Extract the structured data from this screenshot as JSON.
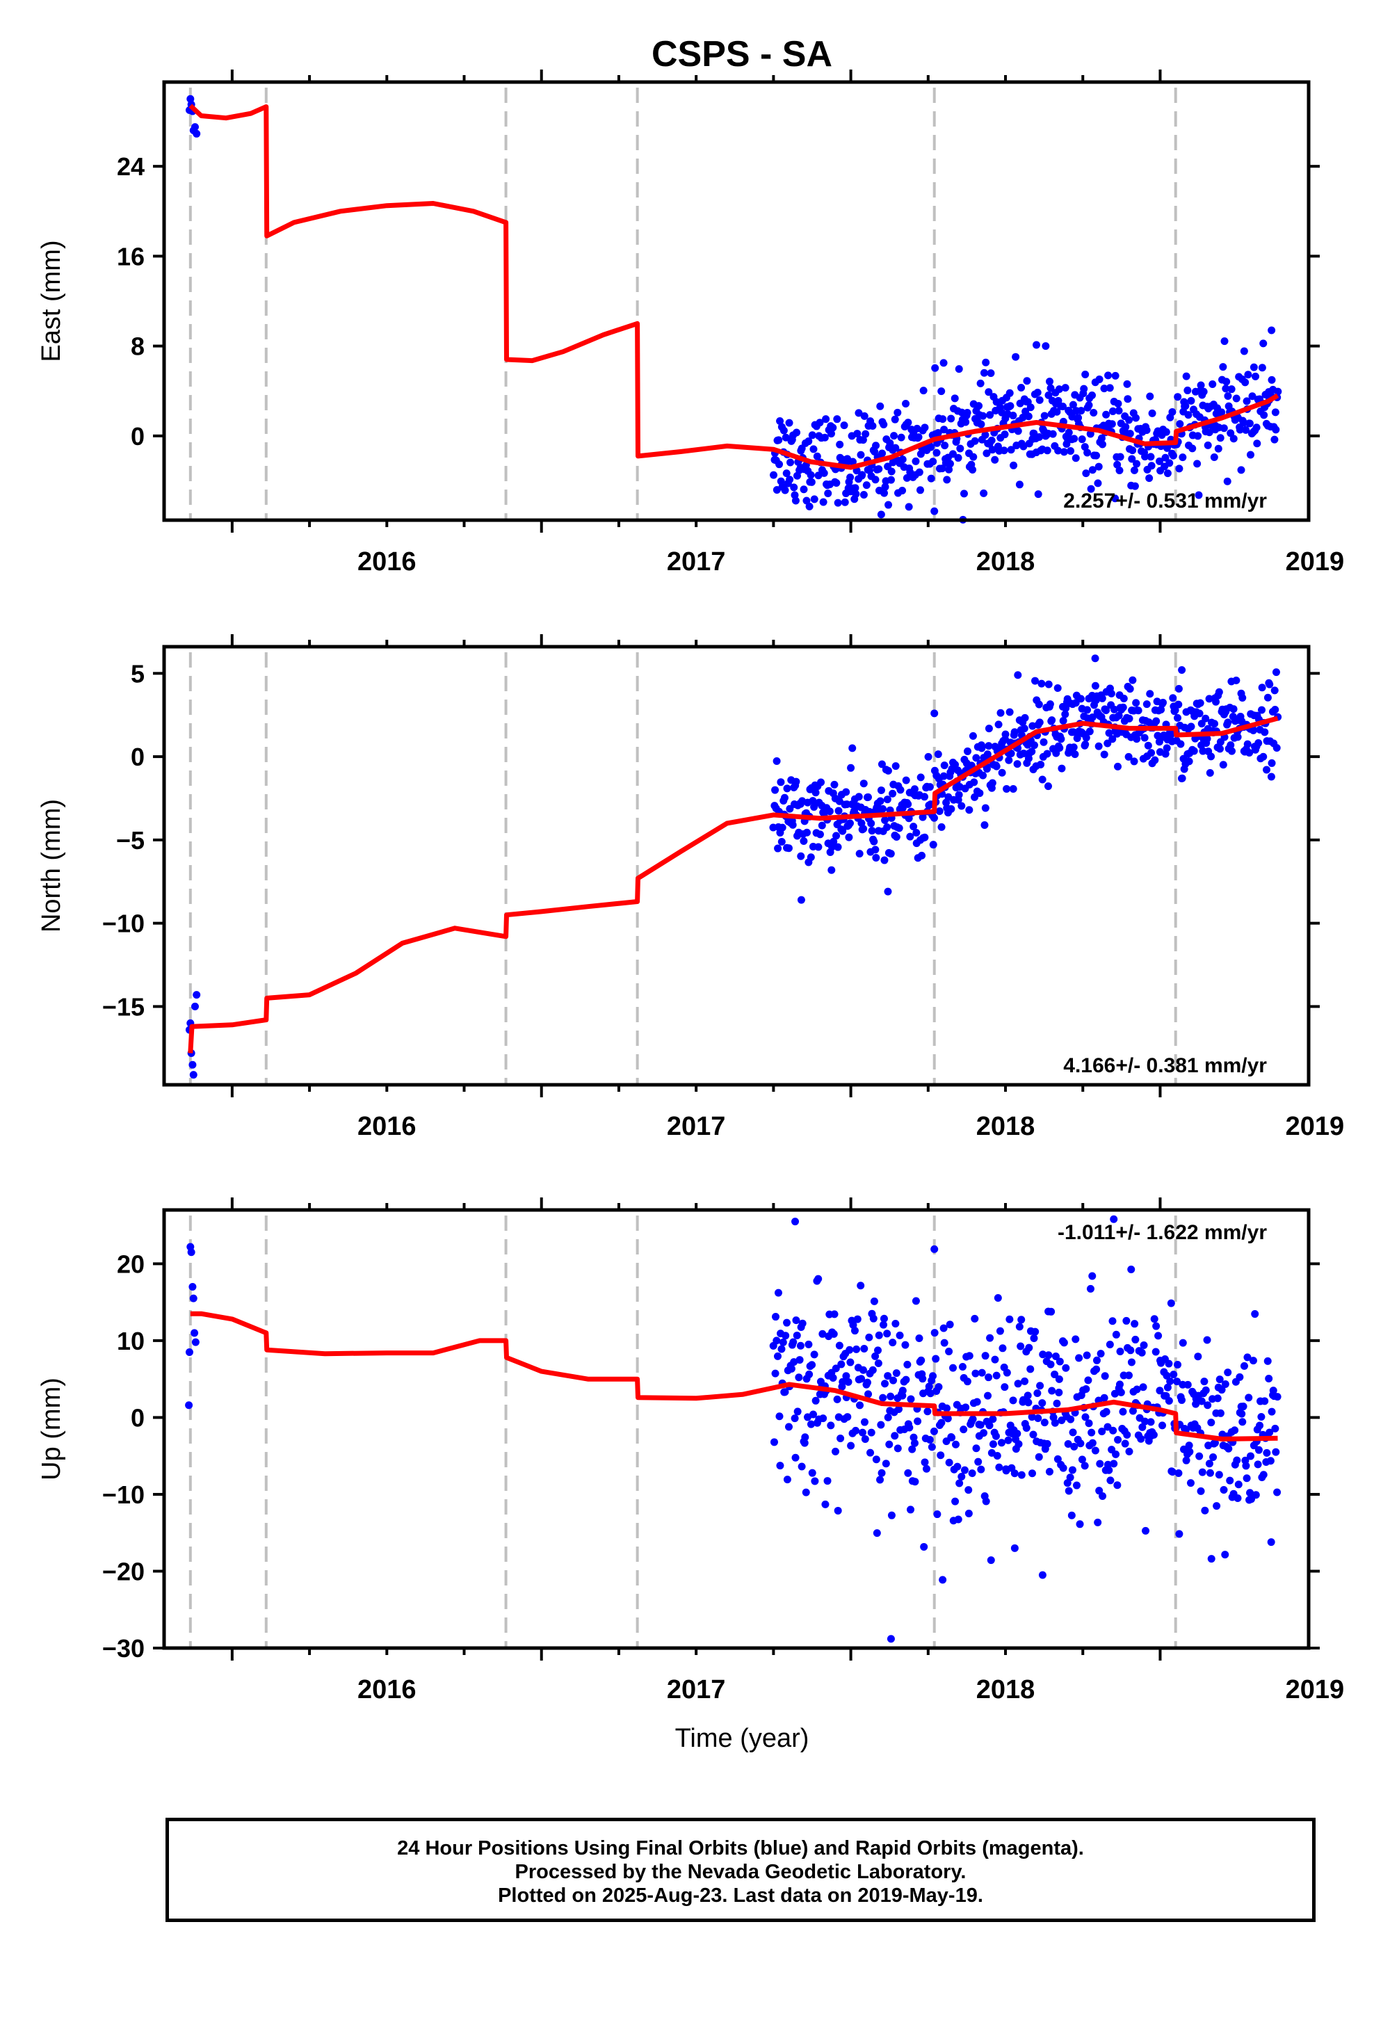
{
  "chart_data": {
    "type": "scatter",
    "title": "CSPS - SA",
    "xlabel": "Time (year)",
    "x_ticks": [
      "2016",
      "2017",
      "2018",
      "2019"
    ],
    "xlim": [
      2015.78,
      2019.48
    ],
    "events": [
      2015.865,
      2016.11,
      2016.885,
      2017.31,
      2018.27,
      2019.05
    ],
    "panels": [
      {
        "ylabel": "East (mm)",
        "ylim": [
          -7.5,
          31.5
        ],
        "yticks": [
          0,
          8,
          16,
          24
        ],
        "rate": "2.257+/- 0.531 mm/yr",
        "rate_position": "bottom-right",
        "early_points": [
          [
            2015.865,
            30.0
          ],
          [
            2015.868,
            29.5
          ],
          [
            2015.872,
            28.9
          ],
          [
            2015.875,
            27.2
          ],
          [
            2015.88,
            27.5
          ],
          [
            2015.885,
            26.9
          ],
          [
            2015.862,
            29.0
          ]
        ],
        "model": [
          [
            2015.865,
            29.4
          ],
          [
            2015.9,
            28.5
          ],
          [
            2015.98,
            28.3
          ],
          [
            2016.06,
            28.7
          ],
          [
            2016.11,
            29.3
          ],
          [
            2016.112,
            17.8
          ],
          [
            2016.2,
            19.0
          ],
          [
            2016.35,
            20.0
          ],
          [
            2016.5,
            20.5
          ],
          [
            2016.65,
            20.7
          ],
          [
            2016.78,
            20.0
          ],
          [
            2016.885,
            19.0
          ],
          [
            2016.887,
            6.8
          ],
          [
            2016.97,
            6.7
          ],
          [
            2017.07,
            7.5
          ],
          [
            2017.2,
            9.0
          ],
          [
            2017.31,
            10.0
          ],
          [
            2017.312,
            -1.8
          ],
          [
            2017.45,
            -1.4
          ],
          [
            2017.6,
            -0.9
          ],
          [
            2017.75,
            -1.2
          ],
          [
            2017.87,
            -2.3
          ],
          [
            2018.0,
            -2.8
          ],
          [
            2018.13,
            -1.9
          ],
          [
            2018.27,
            -0.3
          ],
          [
            2018.4,
            0.4
          ],
          [
            2018.6,
            1.2
          ],
          [
            2018.8,
            0.5
          ],
          [
            2018.95,
            -0.7
          ],
          [
            2019.05,
            -0.6
          ],
          [
            2019.052,
            0.4
          ],
          [
            2019.2,
            1.6
          ],
          [
            2019.35,
            3.1
          ],
          [
            2019.38,
            3.6
          ]
        ],
        "cloud": {
          "start": 2017.75,
          "end": 2019.38,
          "count": 620,
          "spread": 2.2,
          "outliers": [
            [
              2018.6,
              8.1
            ],
            [
              2018.63,
              8.0
            ],
            [
              2019.36,
              9.4
            ],
            [
              2018.27,
              -6.7
            ],
            [
              2018.3,
              6.5
            ]
          ]
        }
      },
      {
        "ylabel": "North (mm)",
        "ylim": [
          -19.7,
          6.6
        ],
        "yticks": [
          -15,
          -10,
          -5,
          0,
          5
        ],
        "rate": "4.166+/- 0.381 mm/yr",
        "rate_position": "bottom-right",
        "early_points": [
          [
            2015.865,
            -16.0
          ],
          [
            2015.868,
            -17.8
          ],
          [
            2015.872,
            -18.5
          ],
          [
            2015.875,
            -19.1
          ],
          [
            2015.88,
            -15.0
          ],
          [
            2015.885,
            -14.3
          ],
          [
            2015.862,
            -16.4
          ]
        ],
        "model": [
          [
            2015.865,
            -17.8
          ],
          [
            2015.87,
            -16.2
          ],
          [
            2016.0,
            -16.1
          ],
          [
            2016.11,
            -15.8
          ],
          [
            2016.112,
            -14.5
          ],
          [
            2016.25,
            -14.3
          ],
          [
            2016.4,
            -13.0
          ],
          [
            2016.55,
            -11.2
          ],
          [
            2016.72,
            -10.3
          ],
          [
            2016.885,
            -10.8
          ],
          [
            2016.887,
            -9.5
          ],
          [
            2017.0,
            -9.3
          ],
          [
            2017.15,
            -9.0
          ],
          [
            2017.31,
            -8.7
          ],
          [
            2017.312,
            -7.3
          ],
          [
            2017.45,
            -5.7
          ],
          [
            2017.6,
            -4.0
          ],
          [
            2017.75,
            -3.5
          ],
          [
            2017.9,
            -3.7
          ],
          [
            2018.1,
            -3.5
          ],
          [
            2018.27,
            -3.3
          ],
          [
            2018.272,
            -2.2
          ],
          [
            2018.45,
            -0.2
          ],
          [
            2018.6,
            1.5
          ],
          [
            2018.75,
            2.0
          ],
          [
            2018.9,
            1.7
          ],
          [
            2019.05,
            1.7
          ],
          [
            2019.052,
            1.3
          ],
          [
            2019.2,
            1.4
          ],
          [
            2019.38,
            2.3
          ]
        ],
        "cloud": {
          "start": 2017.75,
          "end": 2019.38,
          "count": 620,
          "spread": 1.3,
          "outliers": [
            [
              2017.84,
              -8.6
            ],
            [
              2018.12,
              -8.1
            ],
            [
              2018.27,
              2.6
            ],
            [
              2018.79,
              5.9
            ],
            [
              2019.07,
              5.2
            ],
            [
              2018.54,
              4.9
            ]
          ]
        }
      },
      {
        "ylabel": "Up (mm)",
        "ylim": [
          -30,
          27
        ],
        "yticks": [
          -30,
          -20,
          -10,
          0,
          10,
          20
        ],
        "rate": "-1.011+/- 1.622 mm/yr",
        "rate_position": "top-right",
        "early_points": [
          [
            2015.865,
            22.2
          ],
          [
            2015.868,
            21.5
          ],
          [
            2015.872,
            17.0
          ],
          [
            2015.875,
            15.5
          ],
          [
            2015.878,
            11.0
          ],
          [
            2015.882,
            9.8
          ],
          [
            2015.862,
            8.5
          ],
          [
            2015.86,
            1.6
          ]
        ],
        "model": [
          [
            2015.865,
            13.5
          ],
          [
            2015.9,
            13.5
          ],
          [
            2016.0,
            12.8
          ],
          [
            2016.11,
            11.0
          ],
          [
            2016.112,
            8.8
          ],
          [
            2016.3,
            8.3
          ],
          [
            2016.5,
            8.4
          ],
          [
            2016.65,
            8.4
          ],
          [
            2016.8,
            10.0
          ],
          [
            2016.885,
            10.0
          ],
          [
            2016.887,
            7.8
          ],
          [
            2017.0,
            6.0
          ],
          [
            2017.15,
            5.0
          ],
          [
            2017.31,
            5.0
          ],
          [
            2017.312,
            2.6
          ],
          [
            2017.5,
            2.5
          ],
          [
            2017.65,
            3.0
          ],
          [
            2017.8,
            4.3
          ],
          [
            2017.95,
            3.5
          ],
          [
            2018.1,
            1.8
          ],
          [
            2018.27,
            1.5
          ],
          [
            2018.272,
            0.5
          ],
          [
            2018.5,
            0.5
          ],
          [
            2018.7,
            1.0
          ],
          [
            2018.85,
            2.0
          ],
          [
            2019.0,
            1.0
          ],
          [
            2019.05,
            0.5
          ],
          [
            2019.052,
            -2.0
          ],
          [
            2019.2,
            -2.8
          ],
          [
            2019.38,
            -2.7
          ]
        ],
        "cloud": {
          "start": 2017.75,
          "end": 2019.38,
          "count": 620,
          "spread": 6.5,
          "outliers": [
            [
              2017.82,
              25.5
            ],
            [
              2018.85,
              25.8
            ],
            [
              2018.13,
              -28.8
            ],
            [
              2018.62,
              -20.5
            ],
            [
              2018.27,
              21.9
            ],
            [
              2018.53,
              -17.0
            ]
          ]
        }
      }
    ],
    "colors": {
      "points": "#0000ff",
      "model": "#ff0000",
      "events": "#c0c0c0",
      "axis": "#000000"
    }
  },
  "caption": {
    "line1": "24 Hour Positions Using Final Orbits (blue) and Rapid Orbits (magenta).",
    "line2": "Processed by the Nevada Geodetic Laboratory.",
    "line3": "Plotted on 2025-Aug-23. Last data on 2019-May-19."
  }
}
